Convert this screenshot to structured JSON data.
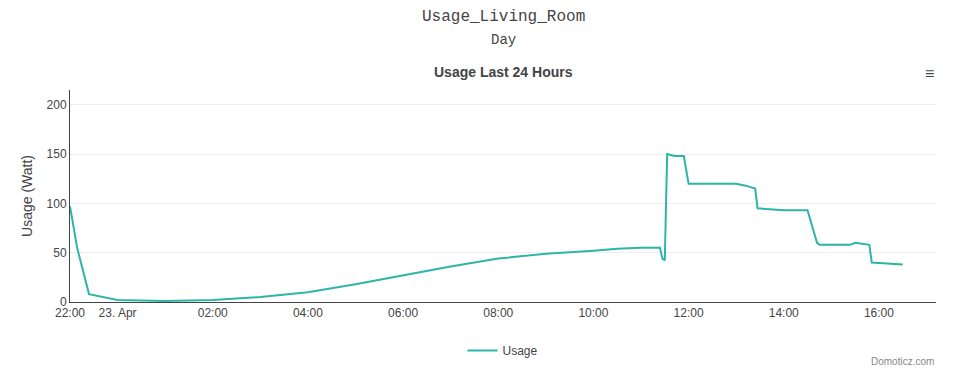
{
  "chart_data": {
    "type": "line",
    "title": "Usage Last 24 Hours",
    "annotations": [
      "Usage_Living_Room",
      "Day",
      "≡",
      "Domoticz.com"
    ],
    "ylabel": "Usage (Watt)",
    "x": [
      0.0,
      0.15,
      0.4,
      1.0,
      2.0,
      3.0,
      4.0,
      5.0,
      6.0,
      7.0,
      8.0,
      9.0,
      10.0,
      11.0,
      11.5,
      12.0,
      12.4,
      12.45,
      12.5,
      12.55,
      12.7,
      12.9,
      13.0,
      13.5,
      14.0,
      14.2,
      14.4,
      14.45,
      15.0,
      15.5,
      15.7,
      15.75,
      16.0,
      16.4,
      16.5,
      16.8,
      16.85,
      17.5
    ],
    "series": [
      {
        "name": "Usage",
        "color": "#2db5a8",
        "values": [
          97,
          55,
          8,
          2,
          1,
          2,
          5,
          10,
          18,
          27,
          36,
          44,
          49,
          52,
          54,
          55,
          55,
          44,
          42,
          150,
          148,
          148,
          120,
          120,
          120,
          118,
          115,
          95,
          93,
          93,
          60,
          58,
          58,
          58,
          60,
          58,
          40,
          38
        ]
      }
    ],
    "xlim": [
      0,
      18.2
    ],
    "xticks": [
      {
        "value": 0,
        "label": "22:00"
      },
      {
        "value": 1,
        "label": "23. Apr"
      },
      {
        "value": 3,
        "label": "02:00"
      },
      {
        "value": 5,
        "label": "04:00"
      },
      {
        "value": 7,
        "label": "06:00"
      },
      {
        "value": 9,
        "label": "08:00"
      },
      {
        "value": 11,
        "label": "10:00"
      },
      {
        "value": 13,
        "label": "12:00"
      },
      {
        "value": 15,
        "label": "14:00"
      },
      {
        "value": 17,
        "label": "16:00"
      }
    ],
    "ylim": [
      0,
      215
    ],
    "yticks": [
      0,
      50,
      100,
      150,
      200
    ],
    "grid": true,
    "legend": "bottom"
  }
}
